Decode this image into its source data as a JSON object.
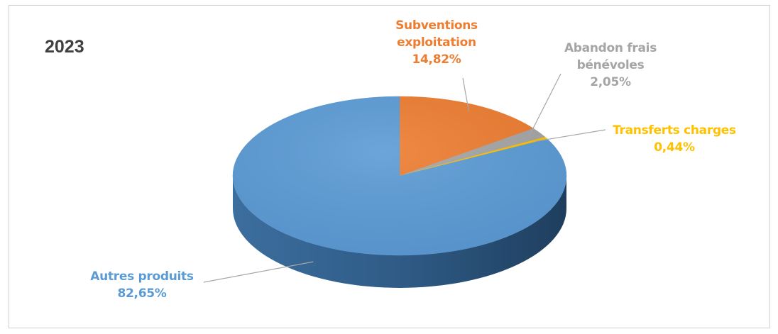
{
  "title": "2023",
  "chart_data": {
    "type": "pie",
    "title": "2023",
    "slices": [
      {
        "name": "Subventions exploitation",
        "name_lines": [
          "Subventions",
          "exploitation"
        ],
        "value": 14.82,
        "label": "14,82%",
        "color": "#ED7D31",
        "dark": "#9E4E17"
      },
      {
        "name": "Abandon frais bénévoles",
        "name_lines": [
          "Abandon frais",
          "bénévoles"
        ],
        "value": 2.05,
        "label": "2,05%",
        "color": "#A5A5A5",
        "dark": "#6E6E6E"
      },
      {
        "name": "Transferts charges",
        "name_lines": [
          "Transferts charges"
        ],
        "value": 0.44,
        "label": "0,44%",
        "color": "#FFC000",
        "dark": "#B38600"
      },
      {
        "name": "Autres produits",
        "name_lines": [
          "Autres produits"
        ],
        "value": 82.65,
        "label": "82,65%",
        "color": "#5B9BD5",
        "dark": "#2E5A85"
      }
    ]
  }
}
